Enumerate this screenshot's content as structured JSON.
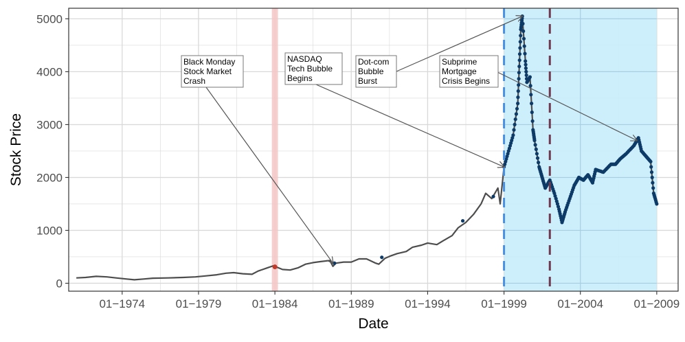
{
  "chart_data": {
    "type": "line",
    "title": "",
    "xlabel": "Date",
    "ylabel": "Stock Price",
    "xlim": [
      1970.5,
      2010.4
    ],
    "ylim": [
      -150,
      5200
    ],
    "x_ticks": [
      {
        "value": 1974,
        "label": "01−1974"
      },
      {
        "value": 1979,
        "label": "01−1979"
      },
      {
        "value": 1984,
        "label": "01−1984"
      },
      {
        "value": 1989,
        "label": "01−1989"
      },
      {
        "value": 1994,
        "label": "01−1994"
      },
      {
        "value": 1999,
        "label": "01−1999"
      },
      {
        "value": 2004,
        "label": "01−2004"
      },
      {
        "value": 2009,
        "label": "01−2009"
      }
    ],
    "y_ticks": [
      {
        "value": 0,
        "label": "0"
      },
      {
        "value": 1000,
        "label": "1000"
      },
      {
        "value": 2000,
        "label": "2000"
      },
      {
        "value": 3000,
        "label": "3000"
      },
      {
        "value": 4000,
        "label": "4000"
      },
      {
        "value": 5000,
        "label": "5000"
      }
    ],
    "grid": true,
    "colors": {
      "line": "#4d4d4d",
      "points": "#0d3a66",
      "red_point": "#c0392b",
      "red_band": "#f4c6c4",
      "blue_band": "#c8ecfb",
      "blue_dash": "#4a90e2",
      "maroon_dash": "#6e3a4f",
      "grid": "#d9d9d9",
      "arrow": "#555555"
    },
    "shaded_regions": [
      {
        "name": "red-band",
        "x_start": 1983.8,
        "x_end": 1984.2
      },
      {
        "name": "blue-band",
        "x_start": 1999.0,
        "x_end": 2009.0
      }
    ],
    "vlines": [
      {
        "name": "blue-dashed-line",
        "x": 1999.0
      },
      {
        "name": "maroon-dashed-line",
        "x": 2002.0
      }
    ],
    "series": [
      {
        "name": "NASDAQ",
        "x": [
          1971.0,
          1971.6,
          1972.3,
          1973.0,
          1973.6,
          1974.3,
          1974.8,
          1975.4,
          1976.0,
          1977.0,
          1978.0,
          1978.8,
          1979.5,
          1980.2,
          1980.8,
          1981.3,
          1981.9,
          1982.5,
          1982.9,
          1983.5,
          1983.9,
          1984.5,
          1985.0,
          1985.5,
          1986.0,
          1986.5,
          1987.0,
          1987.6,
          1987.8,
          1988.0,
          1988.5,
          1989.0,
          1989.5,
          1990.0,
          1990.6,
          1990.8,
          1991.2,
          1991.6,
          1992.0,
          1992.6,
          1993.0,
          1993.6,
          1994.0,
          1994.6,
          1995.0,
          1995.6,
          1996.0,
          1996.5,
          1997.0,
          1997.5,
          1997.8,
          1998.2,
          1998.6,
          1998.75,
          1999.0,
          1999.3,
          1999.6,
          1999.9,
          2000.0,
          2000.1,
          2000.2,
          2000.4,
          2000.5,
          2000.7,
          2000.9,
          2001.0,
          2001.3,
          2001.5,
          2001.7,
          2002.0,
          2002.3,
          2002.6,
          2002.8,
          2003.0,
          2003.3,
          2003.6,
          2003.9,
          2004.2,
          2004.5,
          2004.8,
          2005.0,
          2005.5,
          2006.0,
          2006.3,
          2006.6,
          2007.0,
          2007.5,
          2007.8,
          2008.0,
          2008.3,
          2008.6,
          2008.8,
          2009.0
        ],
        "values": [
          100,
          110,
          130,
          120,
          100,
          80,
          65,
          80,
          95,
          100,
          110,
          120,
          140,
          160,
          190,
          200,
          180,
          170,
          230,
          290,
          330,
          260,
          250,
          290,
          360,
          390,
          410,
          430,
          320,
          380,
          400,
          400,
          460,
          460,
          380,
          360,
          470,
          520,
          560,
          600,
          680,
          720,
          760,
          730,
          800,
          900,
          1050,
          1150,
          1300,
          1500,
          1700,
          1600,
          1800,
          1500,
          2200,
          2500,
          2800,
          3400,
          4100,
          4800,
          5050,
          4200,
          3800,
          3900,
          2900,
          2700,
          2200,
          2000,
          1800,
          1950,
          1700,
          1400,
          1150,
          1350,
          1600,
          1850,
          2000,
          1950,
          2050,
          1900,
          2150,
          2100,
          2250,
          2250,
          2350,
          2450,
          2600,
          2750,
          2500,
          2400,
          2300,
          1700,
          1500
        ],
        "point_start_x": 1999.0
      }
    ],
    "annotations": [
      {
        "name": "black-monday",
        "lines": [
          "Black Monday",
          "Stock Market",
          "Crash"
        ],
        "target": {
          "x": 1987.8,
          "y": 380
        }
      },
      {
        "name": "nasdaq-bubble",
        "lines": [
          "NASDAQ",
          "Tech Bubble",
          "Begins"
        ],
        "target": {
          "x": 1999.0,
          "y": 2200
        }
      },
      {
        "name": "dotcom-burst",
        "lines": [
          "Dot-com",
          "Bubble",
          "Burst"
        ],
        "target": {
          "x": 2000.2,
          "y": 5050
        }
      },
      {
        "name": "subprime",
        "lines": [
          "Subprime",
          "Mortgage",
          "Crisis Begins"
        ],
        "target": {
          "x": 2007.7,
          "y": 2700
        }
      }
    ]
  }
}
